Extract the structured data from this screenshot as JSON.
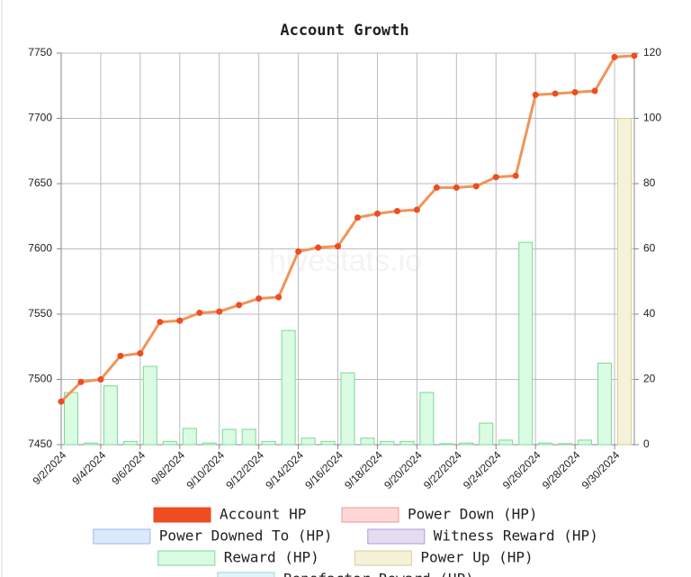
{
  "chart_data": {
    "type": "combo",
    "title": "Account Growth",
    "watermark": "hivestats.io",
    "categories": [
      "9/2/2024",
      null,
      "9/4/2024",
      null,
      "9/6/2024",
      null,
      "9/8/2024",
      null,
      "9/10/2024",
      null,
      "9/12/2024",
      null,
      "9/14/2024",
      null,
      "9/16/2024",
      null,
      "9/18/2024",
      null,
      "9/20/2024",
      null,
      "9/22/2024",
      null,
      "9/24/2024",
      null,
      "9/26/2024",
      null,
      "9/28/2024",
      null,
      "9/30/2024",
      null
    ],
    "ylim": [
      7450,
      7750
    ],
    "yticks": [
      7450,
      7500,
      7550,
      7600,
      7650,
      7700,
      7750
    ],
    "y2lim": [
      0,
      120
    ],
    "y2ticks": [
      0,
      20,
      40,
      60,
      80,
      100,
      120
    ],
    "grid": true,
    "legend": "bottom",
    "series": [
      {
        "name": "Account HP",
        "type": "line",
        "axis": "y",
        "color": "#ee4c22",
        "line_color": "#f09558",
        "values": [
          7483,
          7498,
          7500,
          7518,
          7520,
          7544,
          7545,
          7551,
          7552,
          7557,
          7562,
          7563,
          7598,
          7601,
          7602,
          7624,
          7627,
          7629,
          7630,
          7647,
          7647,
          7648,
          7655,
          7656,
          7718,
          7719,
          7720,
          7721,
          7747,
          7748
        ]
      },
      {
        "name": "Power Down (HP)",
        "type": "bar",
        "axis": "y2",
        "color": "#ffd6d6",
        "border": "#e89a9a",
        "values": [
          null,
          null,
          null,
          null,
          null,
          null,
          null,
          null,
          null,
          null,
          null,
          null,
          null,
          null,
          null,
          null,
          null,
          null,
          null,
          null,
          null,
          null,
          null,
          null,
          null,
          null,
          null,
          null,
          null,
          null
        ]
      },
      {
        "name": "Power Downed To (HP)",
        "type": "bar",
        "axis": "y2",
        "color": "#dce8fb",
        "border": "#9ab8e8",
        "values": [
          null,
          null,
          null,
          null,
          null,
          null,
          null,
          null,
          null,
          null,
          null,
          null,
          null,
          null,
          null,
          null,
          null,
          null,
          null,
          null,
          null,
          null,
          null,
          null,
          null,
          null,
          null,
          null,
          null,
          null
        ]
      },
      {
        "name": "Witness Reward (HP)",
        "type": "bar",
        "axis": "y2",
        "color": "#e6dcf2",
        "border": "#b29ad0",
        "values": [
          null,
          null,
          null,
          null,
          null,
          null,
          null,
          null,
          null,
          null,
          null,
          null,
          null,
          null,
          null,
          null,
          null,
          null,
          null,
          null,
          null,
          null,
          null,
          null,
          null,
          null,
          null,
          null,
          null,
          null
        ]
      },
      {
        "name": "Reward (HP)",
        "type": "bar",
        "axis": "y2",
        "color": "#d9fce3",
        "border": "#7fd699",
        "values": [
          16,
          0.5,
          18,
          1,
          24,
          1,
          5,
          0.5,
          4.7,
          4.7,
          1,
          35,
          2,
          1,
          22,
          2,
          1,
          1,
          16,
          0.3,
          0.5,
          6.6,
          1.4,
          62,
          0.5,
          0.3,
          1.4,
          25,
          1,
          null
        ]
      },
      {
        "name": "Power Up (HP)",
        "type": "bar",
        "axis": "y2",
        "color": "#f6f1d9",
        "border": "#d8cf94",
        "values": [
          null,
          null,
          null,
          null,
          null,
          null,
          null,
          null,
          null,
          null,
          null,
          null,
          null,
          null,
          null,
          null,
          null,
          null,
          null,
          null,
          null,
          null,
          null,
          null,
          null,
          null,
          null,
          null,
          100,
          null
        ]
      },
      {
        "name": "Benefactor Reward (HP)",
        "type": "bar",
        "axis": "y2",
        "color": "#e2f5f7",
        "border": "#9fd3da",
        "values": [
          null,
          null,
          null,
          null,
          null,
          null,
          null,
          null,
          null,
          null,
          null,
          null,
          null,
          null,
          null,
          null,
          null,
          null,
          null,
          null,
          null,
          null,
          null,
          null,
          null,
          null,
          null,
          null,
          null,
          null
        ]
      }
    ]
  }
}
